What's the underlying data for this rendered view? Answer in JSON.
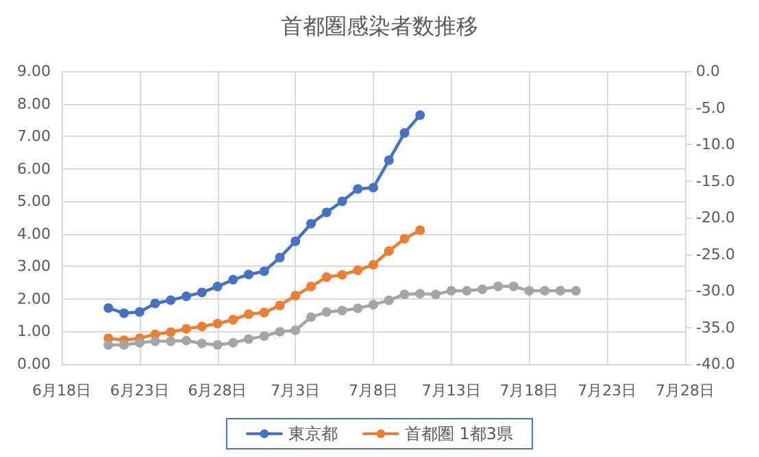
{
  "chart_data": {
    "type": "line",
    "title": "首都圏感染者数推移",
    "x": [
      "--06-21",
      "--06-22",
      "--06-23",
      "--06-24",
      "--06-25",
      "--06-26",
      "--06-27",
      "--06-28",
      "--06-29",
      "--06-30",
      "--07-01",
      "--07-02",
      "--07-03",
      "--07-04",
      "--07-05",
      "--07-06",
      "--07-07",
      "--07-08",
      "--07-09",
      "--07-10",
      "--07-11",
      "--07-12",
      "--07-13",
      "--07-14",
      "--07-15",
      "--07-16",
      "--07-17",
      "--07-18",
      "--07-19",
      "--07-20",
      "--07-21"
    ],
    "series": [
      {
        "name": "東京都",
        "color": "#4472c4",
        "values": [
          1.72,
          1.56,
          1.6,
          1.86,
          1.96,
          2.08,
          2.2,
          2.38,
          2.59,
          2.75,
          2.85,
          3.27,
          3.77,
          4.31,
          4.66,
          5.0,
          5.38,
          5.42,
          6.26,
          7.1,
          7.65,
          null,
          null,
          null,
          null,
          null,
          null,
          null,
          null,
          null,
          null
        ]
      },
      {
        "name": "首都圏 1都3県",
        "color": "#ed7d31",
        "values": [
          0.79,
          0.73,
          0.79,
          0.91,
          0.98,
          1.08,
          1.15,
          1.24,
          1.36,
          1.53,
          1.58,
          1.8,
          2.1,
          2.38,
          2.67,
          2.74,
          2.88,
          3.05,
          3.47,
          3.85,
          4.11,
          null,
          null,
          null,
          null,
          null,
          null,
          null,
          null,
          null,
          null
        ]
      },
      {
        "color": "#a5a5a5",
        "axis": "y2",
        "values": [
          -37.4,
          -37.4,
          -37.1,
          -36.9,
          -36.9,
          -36.8,
          -37.2,
          -37.4,
          -37.1,
          -36.6,
          -36.2,
          -35.6,
          -35.4,
          -33.6,
          -32.9,
          -32.7,
          -32.4,
          -31.9,
          -31.3,
          -30.5,
          -30.4,
          -30.5,
          -30.0,
          -30.0,
          -29.8,
          -29.4,
          -29.4,
          -30.0,
          -30.0,
          -30.0,
          -30.0
        ]
      }
    ],
    "xlim": [
      "--06-18",
      "--07-28"
    ],
    "xticks": [
      {
        "value": "--06-18",
        "label": "6月18日"
      },
      {
        "value": "--06-23",
        "label": "6月23日"
      },
      {
        "value": "--06-28",
        "label": "6月28日"
      },
      {
        "value": "--07-03",
        "label": "7月3日"
      },
      {
        "value": "--07-08",
        "label": "7月8日"
      },
      {
        "value": "--07-13",
        "label": "7月13日"
      },
      {
        "value": "--07-18",
        "label": "7月18日"
      },
      {
        "value": "--07-23",
        "label": "7月23日"
      },
      {
        "value": "--07-28",
        "label": "7月28日"
      }
    ],
    "ylim": [
      0,
      9
    ],
    "yticks": [
      {
        "value": 0,
        "label": "0.00"
      },
      {
        "value": 1,
        "label": "1.00"
      },
      {
        "value": 2,
        "label": "2.00"
      },
      {
        "value": 3,
        "label": "3.00"
      },
      {
        "value": 4,
        "label": "4.00"
      },
      {
        "value": 5,
        "label": "5.00"
      },
      {
        "value": 6,
        "label": "6.00"
      },
      {
        "value": 7,
        "label": "7.00"
      },
      {
        "value": 8,
        "label": "8.00"
      },
      {
        "value": 9,
        "label": "9.00"
      }
    ],
    "y2lim": [
      -40,
      0
    ],
    "y2ticks": [
      {
        "value": -40,
        "label": "-40.0"
      },
      {
        "value": -35,
        "label": "-35.0"
      },
      {
        "value": -30,
        "label": "-30.0"
      },
      {
        "value": -25,
        "label": "-25.0"
      },
      {
        "value": -20,
        "label": "-20.0"
      },
      {
        "value": -15,
        "label": "-15.0"
      },
      {
        "value": -10,
        "label": "-10.0"
      },
      {
        "value": -5,
        "label": "-5.0"
      },
      {
        "value": 0,
        "label": "0.0"
      }
    ],
    "grid": true,
    "legend": "bottom",
    "marker": "circle",
    "line_style": "solid"
  }
}
